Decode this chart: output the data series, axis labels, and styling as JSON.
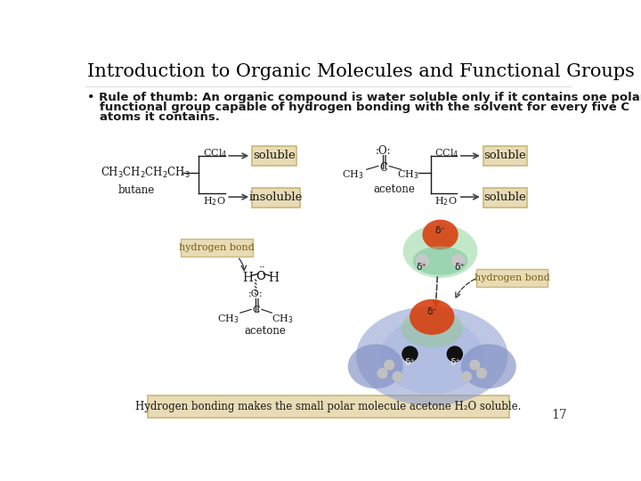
{
  "title": "Introduction to Organic Molecules and Functional Groups",
  "bullet_line1": "• Rule of thumb: An organic compound is water soluble only if it contains one polar",
  "bullet_line2": "   functional group capable of hydrogen bonding with the solvent for every five C",
  "bullet_line3": "   atoms it contains.",
  "background_color": "#ffffff",
  "title_color": "#000000",
  "box_fill": "#e8dbb5",
  "box_edge": "#c8b87a",
  "footer_text": "Hydrogen bonding makes the small polar molecule acetone H₂O soluble.",
  "page_number": "17",
  "slide_bg": "#ffffff",
  "text_color": "#1a1a1a",
  "arrow_color": "#444444",
  "label_color": "#7a6010"
}
